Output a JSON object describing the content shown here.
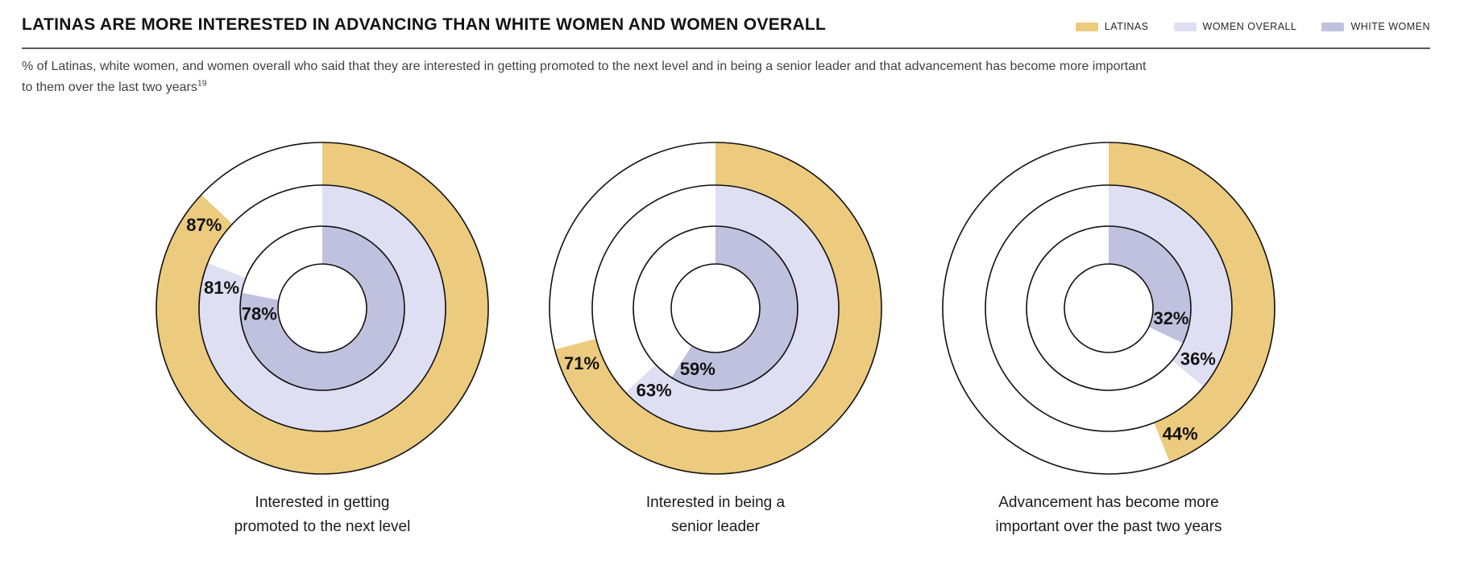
{
  "header": {
    "title": "LATINAS ARE MORE INTERESTED IN ADVANCING THAN WHITE WOMEN AND WOMEN OVERALL",
    "legend": [
      {
        "label": "LATINAS",
        "color": "#ECCB7F"
      },
      {
        "label": "WOMEN OVERALL",
        "color": "#DEDFF2"
      },
      {
        "label": "WHITE WOMEN",
        "color": "#C0C1DE"
      }
    ]
  },
  "subtitle": {
    "line1": "% of Latinas, white women, and women overall who said that they are interested in getting promoted to the next level and in being a senior leader and that advancement has become more important",
    "line2": "to them over the last two years",
    "footnote_ref": "19"
  },
  "chart_data": {
    "type": "concentric-donut",
    "unit": "%",
    "rings_outer_to_inner": [
      "LATINAS",
      "WOMEN OVERALL",
      "WHITE WOMEN"
    ],
    "ring_colors": [
      "#ECCB7F",
      "#DEDFF2",
      "#C0C1DE"
    ],
    "outline_color": "#111111",
    "start_angle_deg": 0,
    "direction": "clockwise",
    "charts": [
      {
        "caption": "Interested in getting\npromoted to the next level",
        "values": [
          {
            "series": "LATINAS",
            "value": 87,
            "label": "87%"
          },
          {
            "series": "WOMEN OVERALL",
            "value": 81,
            "label": "81%"
          },
          {
            "series": "WHITE WOMEN",
            "value": 78,
            "label": "78%"
          }
        ]
      },
      {
        "caption": "Interested in being a\nsenior leader",
        "values": [
          {
            "series": "LATINAS",
            "value": 71,
            "label": "71%"
          },
          {
            "series": "WOMEN OVERALL",
            "value": 63,
            "label": "63%"
          },
          {
            "series": "WHITE WOMEN",
            "value": 59,
            "label": "59%"
          }
        ]
      },
      {
        "caption": "Advancement has become more\nimportant over the past two years",
        "values": [
          {
            "series": "LATINAS",
            "value": 44,
            "label": "44%"
          },
          {
            "series": "WOMEN OVERALL",
            "value": 36,
            "label": "36%"
          },
          {
            "series": "WHITE WOMEN",
            "value": 32,
            "label": "32%"
          }
        ]
      }
    ]
  }
}
